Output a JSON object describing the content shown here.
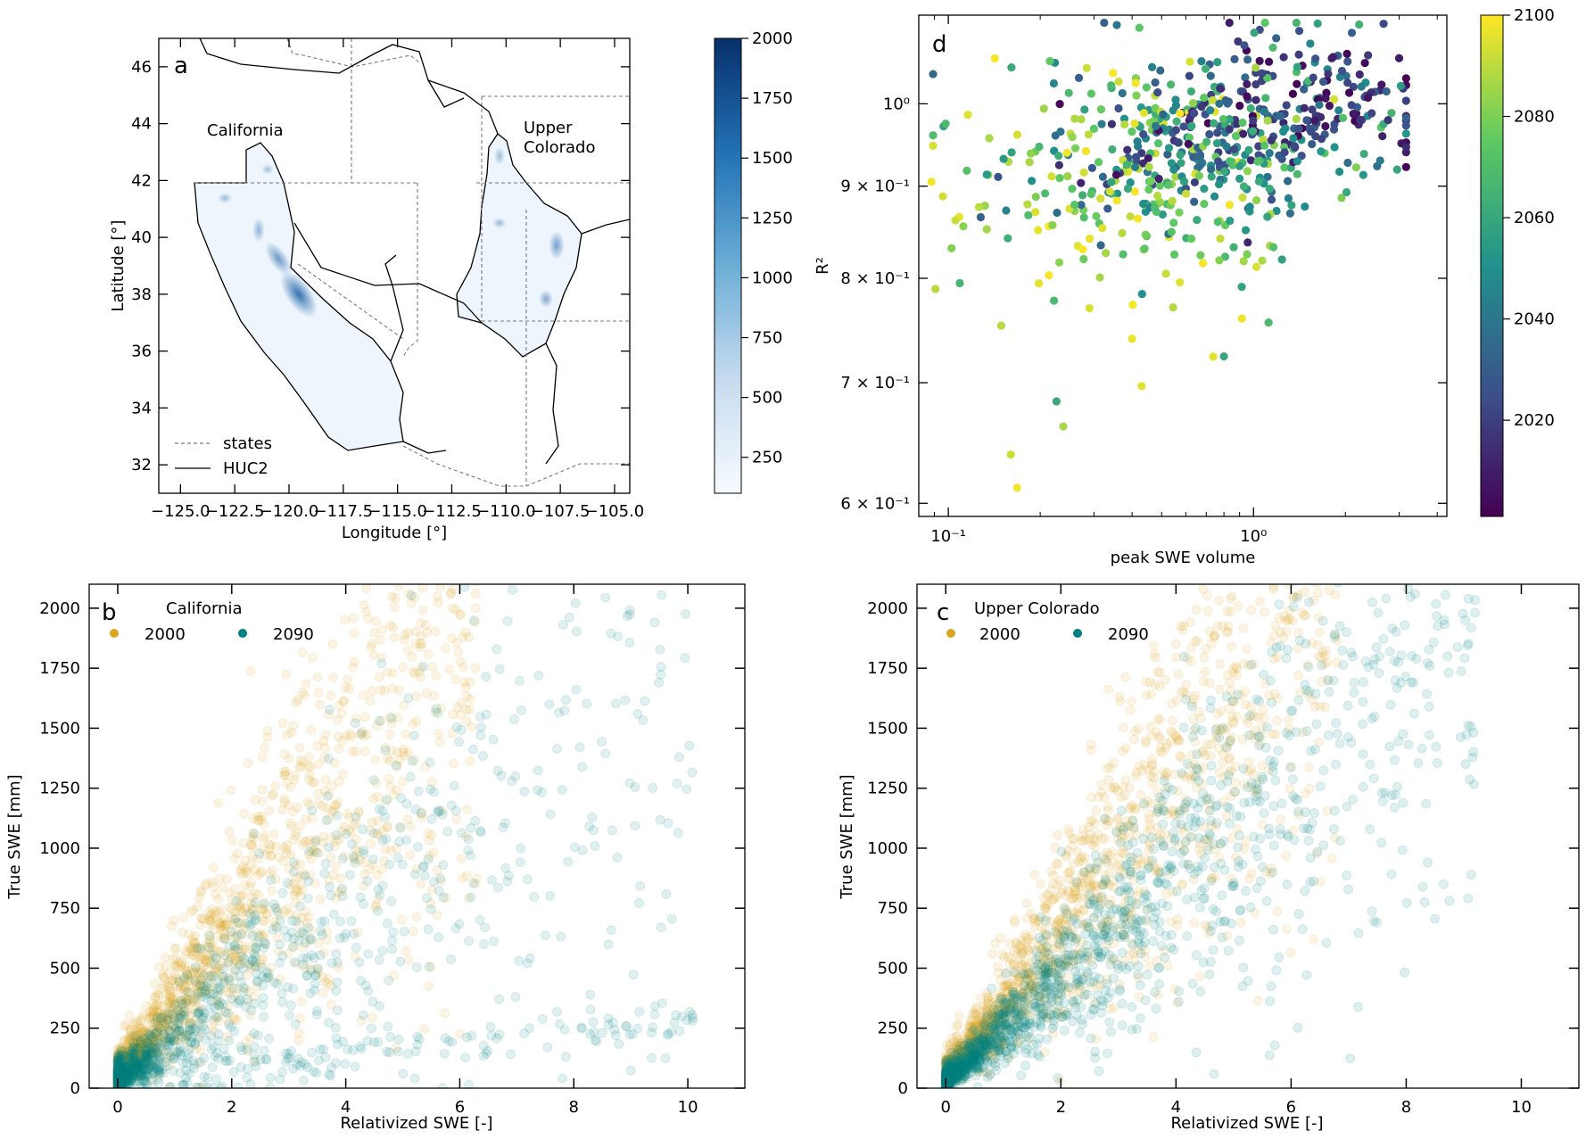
{
  "panels": {
    "a": {
      "letter": "a",
      "label_california": "California",
      "label_uc_line1": "Upper",
      "label_uc_line2": "Colorado",
      "legend": [
        "states",
        "HUC2"
      ],
      "xlabel": "Longitude [°]",
      "ylabel": "Latitude [°]"
    },
    "b": {
      "letter": "b",
      "legend_title": "California"
    },
    "c": {
      "letter": "c",
      "legend_title": "Upper Colorado"
    },
    "d": {
      "letter": "d"
    }
  },
  "colors": {
    "gold": "#daa520",
    "teal": "#008080"
  },
  "chart_data": [
    {
      "id": "a",
      "type": "heatmap",
      "xlabel": "Longitude [°]",
      "ylabel": "Latitude [°]",
      "xlim": [
        -126,
        -104.3
      ],
      "ylim": [
        31,
        47
      ],
      "xticks": [
        -125.0,
        -122.5,
        -120.0,
        -117.5,
        -115.0,
        -112.5,
        -110.0,
        -107.5,
        -105.0
      ],
      "xtick_labels": [
        "−125.0",
        "−122.5",
        "−120.0",
        "−117.5",
        "−115.0",
        "−112.5",
        "−110.0",
        "−107.5",
        "−105.0"
      ],
      "yticks": [
        32,
        34,
        36,
        38,
        40,
        42,
        44,
        46
      ],
      "colorbar": {
        "label": "",
        "range": [
          100,
          2000
        ],
        "ticks": [
          250,
          500,
          750,
          1000,
          1250,
          1500,
          1750,
          2000
        ],
        "colormap": "Blues"
      },
      "annotations": [
        "California",
        "Upper Colorado"
      ],
      "legend": [
        "states",
        "HUC2"
      ]
    },
    {
      "id": "d",
      "type": "scatter",
      "xlabel": "peak SWE volume",
      "ylabel": "R²",
      "xscale": "log",
      "yscale": "log",
      "xlim": [
        0.08,
        4.3
      ],
      "ylim": [
        0.59,
        1.12
      ],
      "xtick_labels": [
        "10⁻¹",
        "10⁰"
      ],
      "ytick_labels": [
        "6 × 10⁻¹",
        "7 × 10⁻¹",
        "8 × 10⁻¹",
        "9 × 10⁻¹",
        "10⁰"
      ],
      "colorbar": {
        "label": "",
        "range": [
          2001,
          2100
        ],
        "ticks": [
          2020,
          2040,
          2060,
          2080,
          2100
        ],
        "colormap": "viridis"
      },
      "points_sample": [
        {
          "x": 0.088,
          "y": 0.905,
          "year": 2098
        },
        {
          "x": 0.098,
          "y": 0.975,
          "year": 2068
        },
        {
          "x": 0.109,
          "y": 0.795,
          "year": 2066
        },
        {
          "x": 0.115,
          "y": 0.918,
          "year": 2072
        },
        {
          "x": 0.112,
          "y": 0.855,
          "year": 2082
        },
        {
          "x": 0.168,
          "y": 0.612,
          "year": 2098
        },
        {
          "x": 0.238,
          "y": 0.662,
          "year": 2086
        },
        {
          "x": 0.29,
          "y": 0.77,
          "year": 2094
        },
        {
          "x": 0.43,
          "y": 0.697,
          "year": 2096
        },
        {
          "x": 0.8,
          "y": 0.724,
          "year": 2060
        },
        {
          "x": 1.12,
          "y": 0.756,
          "year": 2068
        },
        {
          "x": 2.1,
          "y": 1.095,
          "year": 2030
        },
        {
          "x": 3.0,
          "y": 1.06,
          "year": 2010
        },
        {
          "x": 2.6,
          "y": 0.93,
          "year": 2042
        }
      ]
    },
    {
      "id": "b",
      "type": "scatter",
      "title": "California",
      "xlabel": "Relativized SWE [-]",
      "ylabel": "True SWE [mm]",
      "xlim": [
        -0.5,
        11
      ],
      "ylim": [
        0,
        2100
      ],
      "xticks": [
        0,
        2,
        4,
        6,
        8,
        10
      ],
      "yticks": [
        0,
        250,
        500,
        750,
        1000,
        1250,
        1500,
        1750,
        2000
      ],
      "series": [
        {
          "name": "2000",
          "color": "#daa520",
          "trend": "SWE ≈ 330 × relativized SWE, spread to x≈6, y≈2100"
        },
        {
          "name": "2090",
          "color": "#008080",
          "trend": "SWE ≈ 180 × relativized SWE, spread to x≈10, y≈1900"
        }
      ]
    },
    {
      "id": "c",
      "type": "scatter",
      "title": "Upper Colorado",
      "xlabel": "Relativized SWE [-]",
      "ylabel": "True SWE [mm]",
      "xlim": [
        -0.5,
        11
      ],
      "ylim": [
        0,
        2100
      ],
      "xticks": [
        0,
        2,
        4,
        6,
        8,
        10
      ],
      "yticks": [
        0,
        250,
        500,
        750,
        1000,
        1250,
        1500,
        1750,
        2000
      ],
      "series": [
        {
          "name": "2000",
          "color": "#daa520",
          "trend": "SWE ≈ 330 × relativized SWE, spread to x≈7, y≈1900"
        },
        {
          "name": "2090",
          "color": "#008080",
          "trend": "SWE ≈ 210 × relativized SWE, spread to x≈9, y≈1650"
        }
      ]
    }
  ]
}
